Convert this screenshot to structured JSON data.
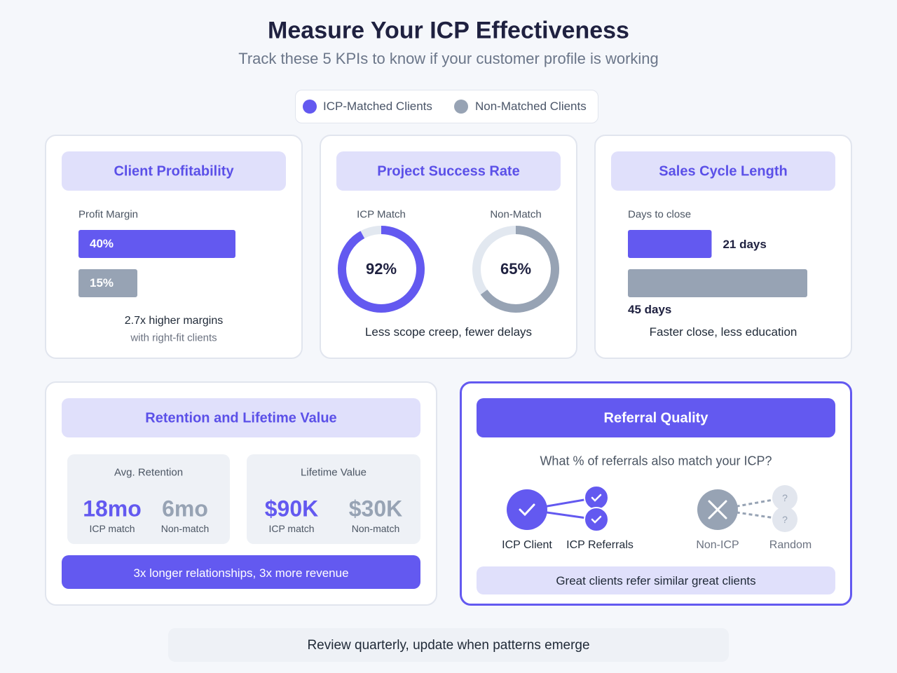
{
  "header": {
    "title": "Measure Your ICP Effectiveness",
    "subtitle": "Track these 5 KPIs to know if your customer profile is working"
  },
  "legend": [
    {
      "label": "ICP-Matched Clients",
      "color": "#6359f0"
    },
    {
      "label": "Non-Matched Clients",
      "color": "#97a3b4"
    }
  ],
  "profitability": {
    "title": "Client Profitability",
    "axis_label": "Profit Margin",
    "bars": [
      {
        "value": 40,
        "label": "40%"
      },
      {
        "value": 15,
        "label": "15%"
      }
    ],
    "note": "2.7x higher margins",
    "subnote": "with right-fit clients"
  },
  "success": {
    "title": "Project Success Rate",
    "donuts": [
      {
        "name": "ICP Match",
        "value": 92,
        "label": "92%"
      },
      {
        "name": "Non-Match",
        "value": 65,
        "label": "65%"
      }
    ],
    "note": "Less scope creep, fewer delays"
  },
  "sales_cycle": {
    "title": "Sales Cycle Length",
    "axis_label": "Days to close",
    "bars": [
      {
        "value": 21,
        "label": "21 days"
      },
      {
        "value": 45,
        "label": "45 days"
      }
    ],
    "note": "Faster close, less education"
  },
  "retention": {
    "title": "Retention and Lifetime Value",
    "boxes": [
      {
        "title": "Avg. Retention",
        "stats": [
          {
            "value": "18mo",
            "label": "ICP match"
          },
          {
            "value": "6mo",
            "label": "Non-match"
          }
        ]
      },
      {
        "title": "Lifetime Value",
        "stats": [
          {
            "value": "$90K",
            "label": "ICP match"
          },
          {
            "value": "$30K",
            "label": "Non-match"
          }
        ]
      }
    ],
    "banner": "3x longer relationships, 3x more revenue"
  },
  "referral": {
    "title": "Referral Quality",
    "question": "What % of referrals also match your ICP?",
    "labels": [
      "ICP Client",
      "ICP Referrals",
      "Non-ICP",
      "Random"
    ],
    "unknown_marks": [
      "?",
      "?"
    ],
    "note": "Great clients refer similar great clients"
  },
  "footer": "Review quarterly, update when patterns emerge"
}
